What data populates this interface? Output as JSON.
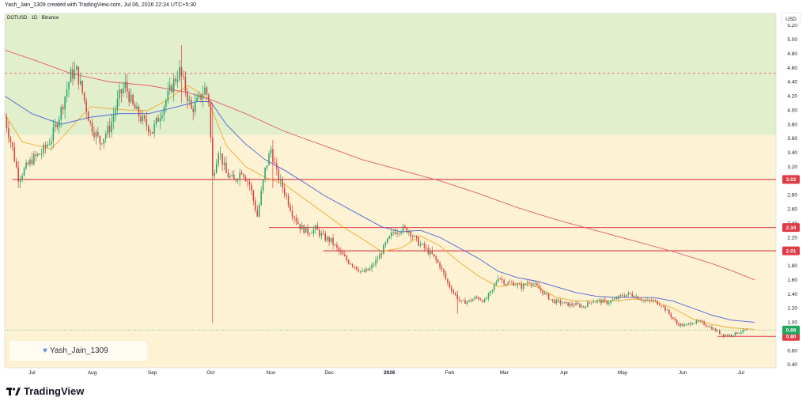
{
  "header": {
    "caption": "Yash_Jain_1309 created with TradingView.com, Jul 06, 2026 22:24 UTC+5:30"
  },
  "footer": {
    "brand": "TradingView"
  },
  "watermark": {
    "user": "Yash_Jain_1309",
    "icon": "heart-icon"
  },
  "chart_data": {
    "type": "candlestick",
    "symbol_label": "DOTUSD · 1D · Binance",
    "currency": "USD",
    "y_ticks": [
      "5.20",
      "5.00",
      "4.80",
      "4.60",
      "4.40",
      "4.20",
      "4.00",
      "3.80",
      "3.60",
      "3.40",
      "3.20",
      "3.00",
      "2.80",
      "2.60",
      "2.40",
      "2.20",
      "2.00",
      "1.80",
      "1.60",
      "1.40",
      "1.20",
      "1.00",
      "0.80",
      "0.60",
      "0.40"
    ],
    "ylim": [
      0.4,
      5.2
    ],
    "x_ticks": [
      {
        "label": "Jul",
        "day": 0
      },
      {
        "label": "Aug",
        "day": 31
      },
      {
        "label": "Sep",
        "day": 62
      },
      {
        "label": "Oct",
        "day": 92
      },
      {
        "label": "Nov",
        "day": 123
      },
      {
        "label": "Dec",
        "day": 153
      },
      {
        "label": "2026",
        "day": 184
      },
      {
        "label": "Feb",
        "day": 215
      },
      {
        "label": "Mar",
        "day": 243
      },
      {
        "label": "Apr",
        "day": 274
      },
      {
        "label": "May",
        "day": 304
      },
      {
        "label": "Jun",
        "day": 335
      },
      {
        "label": "Jul",
        "day": 365
      }
    ],
    "xlim": [
      -14,
      383
    ],
    "resistance_zone": {
      "from": 3.65,
      "to": 5.2,
      "color": "#e2efcc"
    },
    "support_zone_color": "#fdf2d3",
    "dashed_level": {
      "value": 4.52,
      "color": "#e0505a"
    },
    "levels": [
      {
        "label": "3.02",
        "value": 3.02,
        "from_day": -10
      },
      {
        "label": "2.34",
        "value": 2.34,
        "from_day": 122
      },
      {
        "label": "2.01",
        "value": 2.01,
        "from_day": 150
      },
      {
        "label": "0.80",
        "value": 0.8,
        "from_day": 353
      }
    ],
    "level_color": "#e03a45",
    "last_price": {
      "label": "0.89",
      "value": 0.89,
      "color": "#22a65a"
    },
    "moving_averages": [
      {
        "color": "#f0a92c",
        "points": [
          [
            -14,
            3.95
          ],
          [
            -5,
            3.55
          ],
          [
            10,
            3.45
          ],
          [
            20,
            3.75
          ],
          [
            30,
            4.05
          ],
          [
            40,
            4.02
          ],
          [
            50,
            4.0
          ],
          [
            60,
            4.0
          ],
          [
            70,
            4.15
          ],
          [
            80,
            4.35
          ],
          [
            88,
            4.22
          ],
          [
            92,
            4.05
          ],
          [
            100,
            3.5
          ],
          [
            110,
            3.2
          ],
          [
            120,
            3.05
          ],
          [
            130,
            2.95
          ],
          [
            140,
            2.75
          ],
          [
            150,
            2.55
          ],
          [
            160,
            2.35
          ],
          [
            170,
            2.18
          ],
          [
            180,
            2.0
          ],
          [
            190,
            2.05
          ],
          [
            200,
            2.22
          ],
          [
            210,
            2.08
          ],
          [
            220,
            1.85
          ],
          [
            230,
            1.65
          ],
          [
            240,
            1.5
          ],
          [
            250,
            1.55
          ],
          [
            260,
            1.5
          ],
          [
            270,
            1.35
          ],
          [
            280,
            1.3
          ],
          [
            290,
            1.3
          ],
          [
            300,
            1.3
          ],
          [
            310,
            1.33
          ],
          [
            320,
            1.3
          ],
          [
            330,
            1.2
          ],
          [
            340,
            1.05
          ],
          [
            350,
            0.97
          ],
          [
            360,
            0.92
          ],
          [
            372,
            0.9
          ]
        ]
      },
      {
        "color": "#4a62d8",
        "points": [
          [
            -14,
            4.2
          ],
          [
            0,
            3.95
          ],
          [
            15,
            3.8
          ],
          [
            30,
            3.9
          ],
          [
            45,
            3.95
          ],
          [
            60,
            3.95
          ],
          [
            75,
            4.05
          ],
          [
            85,
            4.12
          ],
          [
            92,
            4.12
          ],
          [
            100,
            3.8
          ],
          [
            110,
            3.52
          ],
          [
            120,
            3.3
          ],
          [
            130,
            3.15
          ],
          [
            140,
            2.98
          ],
          [
            150,
            2.8
          ],
          [
            160,
            2.65
          ],
          [
            170,
            2.5
          ],
          [
            180,
            2.35
          ],
          [
            190,
            2.28
          ],
          [
            200,
            2.3
          ],
          [
            210,
            2.2
          ],
          [
            220,
            2.05
          ],
          [
            230,
            1.9
          ],
          [
            240,
            1.72
          ],
          [
            250,
            1.63
          ],
          [
            260,
            1.58
          ],
          [
            270,
            1.5
          ],
          [
            280,
            1.42
          ],
          [
            290,
            1.37
          ],
          [
            300,
            1.35
          ],
          [
            310,
            1.35
          ],
          [
            320,
            1.35
          ],
          [
            330,
            1.3
          ],
          [
            340,
            1.2
          ],
          [
            350,
            1.1
          ],
          [
            360,
            1.03
          ],
          [
            372,
            1.0
          ]
        ]
      },
      {
        "color": "#e4587c",
        "points": [
          [
            -14,
            4.85
          ],
          [
            0,
            4.72
          ],
          [
            20,
            4.52
          ],
          [
            40,
            4.4
          ],
          [
            60,
            4.35
          ],
          [
            80,
            4.25
          ],
          [
            92,
            4.15
          ],
          [
            110,
            3.95
          ],
          [
            130,
            3.7
          ],
          [
            150,
            3.5
          ],
          [
            170,
            3.3
          ],
          [
            190,
            3.15
          ],
          [
            210,
            3.0
          ],
          [
            230,
            2.82
          ],
          [
            250,
            2.62
          ],
          [
            270,
            2.45
          ],
          [
            290,
            2.3
          ],
          [
            310,
            2.15
          ],
          [
            330,
            2.0
          ],
          [
            350,
            1.83
          ],
          [
            360,
            1.73
          ],
          [
            372,
            1.6
          ]
        ]
      }
    ],
    "price_path": [
      [
        -14,
        3.9
      ],
      [
        -10,
        3.45
      ],
      [
        -7,
        3.05
      ],
      [
        -4,
        3.15
      ],
      [
        0,
        3.3
      ],
      [
        5,
        3.4
      ],
      [
        10,
        3.6
      ],
      [
        15,
        4.0
      ],
      [
        20,
        4.5
      ],
      [
        23,
        4.55
      ],
      [
        26,
        4.25
      ],
      [
        30,
        3.8
      ],
      [
        35,
        3.55
      ],
      [
        40,
        3.75
      ],
      [
        45,
        4.2
      ],
      [
        48,
        4.35
      ],
      [
        52,
        4.05
      ],
      [
        57,
        3.85
      ],
      [
        62,
        3.7
      ],
      [
        66,
        3.95
      ],
      [
        70,
        4.2
      ],
      [
        73,
        4.4
      ],
      [
        76,
        4.55
      ],
      [
        79,
        4.3
      ],
      [
        82,
        4.0
      ],
      [
        86,
        4.15
      ],
      [
        89,
        4.3
      ],
      [
        91,
        4.15
      ],
      [
        93,
        3.05
      ],
      [
        96,
        3.45
      ],
      [
        100,
        3.1
      ],
      [
        104,
        3.0
      ],
      [
        108,
        3.15
      ],
      [
        112,
        2.95
      ],
      [
        116,
        2.5
      ],
      [
        120,
        3.15
      ],
      [
        123,
        3.45
      ],
      [
        126,
        3.1
      ],
      [
        130,
        2.85
      ],
      [
        134,
        2.55
      ],
      [
        138,
        2.35
      ],
      [
        142,
        2.28
      ],
      [
        146,
        2.32
      ],
      [
        150,
        2.2
      ],
      [
        154,
        2.15
      ],
      [
        158,
        2.0
      ],
      [
        162,
        1.88
      ],
      [
        166,
        1.8
      ],
      [
        170,
        1.7
      ],
      [
        174,
        1.75
      ],
      [
        178,
        1.9
      ],
      [
        182,
        2.1
      ],
      [
        186,
        2.28
      ],
      [
        190,
        2.32
      ],
      [
        194,
        2.3
      ],
      [
        198,
        2.15
      ],
      [
        202,
        2.05
      ],
      [
        206,
        1.95
      ],
      [
        210,
        1.8
      ],
      [
        214,
        1.55
      ],
      [
        218,
        1.38
      ],
      [
        221,
        1.28
      ],
      [
        225,
        1.3
      ],
      [
        229,
        1.35
      ],
      [
        233,
        1.3
      ],
      [
        237,
        1.45
      ],
      [
        240,
        1.65
      ],
      [
        244,
        1.55
      ],
      [
        248,
        1.55
      ],
      [
        252,
        1.5
      ],
      [
        256,
        1.58
      ],
      [
        260,
        1.5
      ],
      [
        264,
        1.4
      ],
      [
        268,
        1.3
      ],
      [
        272,
        1.28
      ],
      [
        276,
        1.25
      ],
      [
        280,
        1.25
      ],
      [
        284,
        1.22
      ],
      [
        288,
        1.3
      ],
      [
        292,
        1.3
      ],
      [
        296,
        1.28
      ],
      [
        300,
        1.32
      ],
      [
        304,
        1.38
      ],
      [
        308,
        1.4
      ],
      [
        312,
        1.35
      ],
      [
        316,
        1.3
      ],
      [
        320,
        1.3
      ],
      [
        324,
        1.25
      ],
      [
        328,
        1.12
      ],
      [
        332,
        0.98
      ],
      [
        336,
        0.95
      ],
      [
        340,
        1.0
      ],
      [
        344,
        1.0
      ],
      [
        348,
        0.95
      ],
      [
        352,
        0.88
      ],
      [
        356,
        0.82
      ],
      [
        360,
        0.82
      ],
      [
        364,
        0.86
      ],
      [
        368,
        0.89
      ]
    ],
    "spikes": [
      {
        "day": 93,
        "high": 4.1,
        "low": 0.99
      },
      {
        "day": 77,
        "high": 4.92,
        "low": 4.1
      },
      {
        "day": 124,
        "high": 3.58,
        "low": 2.9
      },
      {
        "day": 219,
        "high": 1.45,
        "low": 1.12
      }
    ],
    "up_color": "#26a269",
    "down_color": "#d6413f"
  }
}
